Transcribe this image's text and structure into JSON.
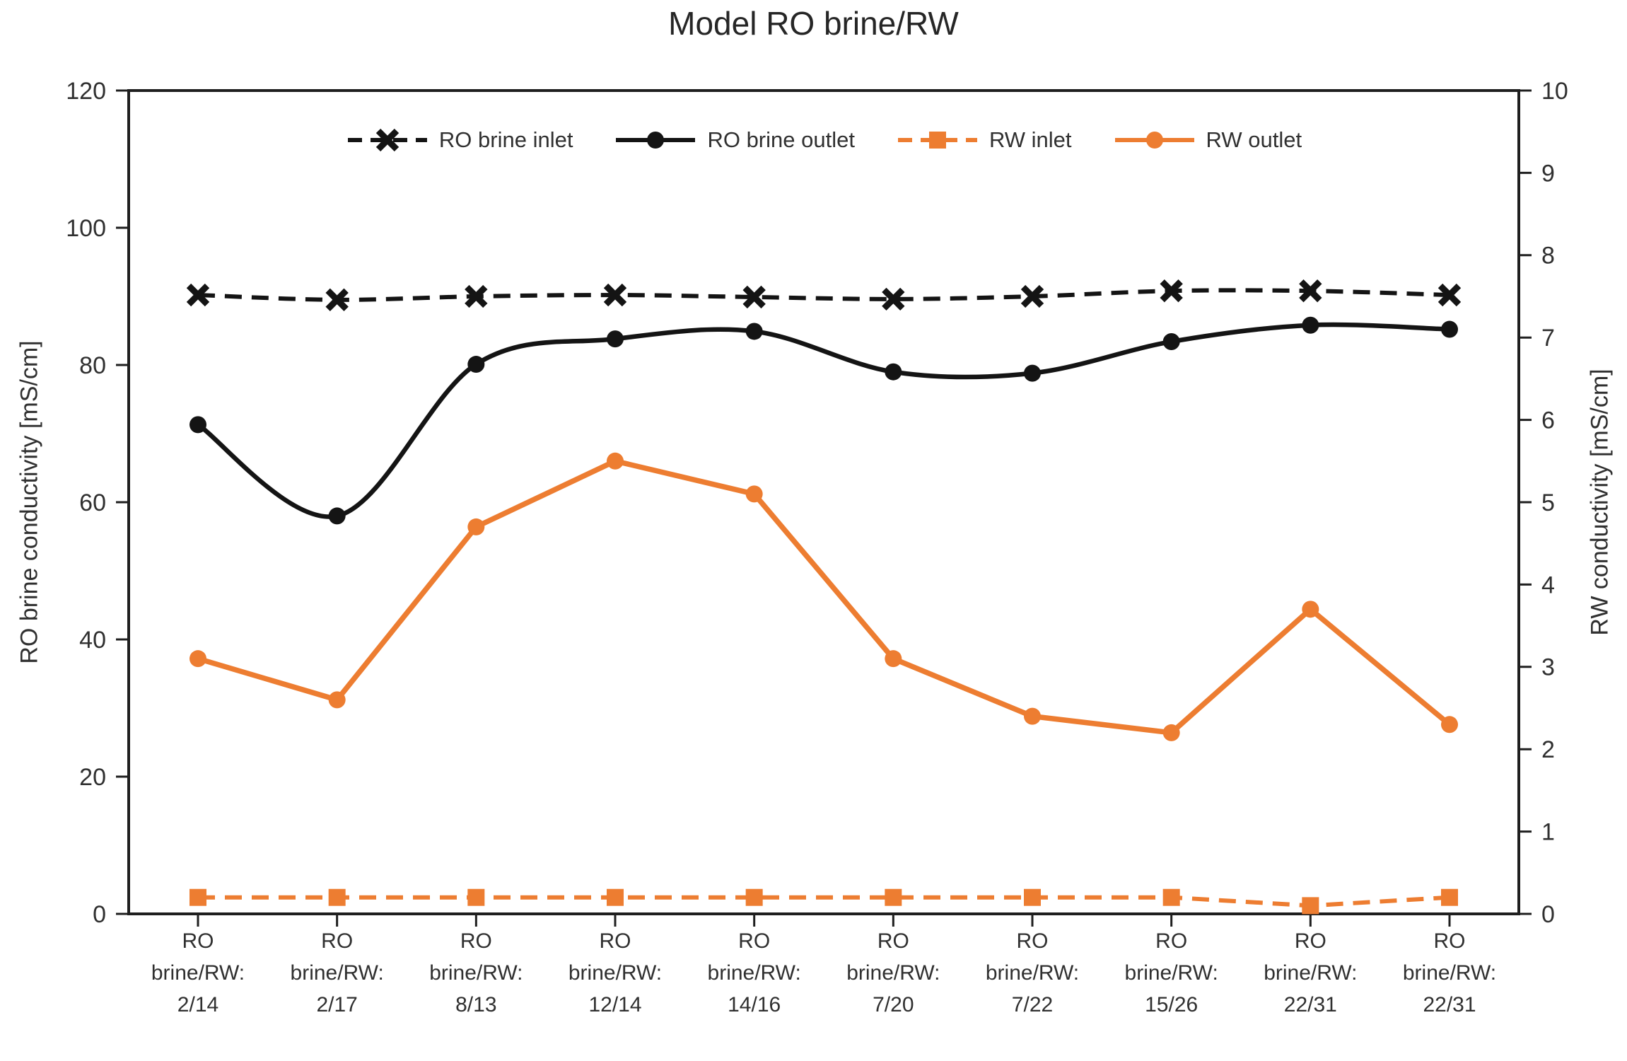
{
  "title": "Model RO brine/RW",
  "left_axis": {
    "label": "RO brine conductivity [mS/cm]",
    "ticks": [
      0,
      20,
      40,
      60,
      80,
      100,
      120
    ]
  },
  "right_axis": {
    "label": "RW conductivity [mS/cm]",
    "ticks": [
      0,
      1,
      2,
      3,
      4,
      5,
      6,
      7,
      8,
      9,
      10
    ]
  },
  "colors": {
    "black": "#141414",
    "orange": "#ED7D31",
    "axis": "#1f1f1f",
    "text": "#303030"
  },
  "chart_data": {
    "type": "line",
    "title": "Model RO brine/RW",
    "xlabel": "",
    "ylabel_left": "RO brine conductivity [mS/cm]",
    "ylabel_right": "RW conductivity [mS/cm]",
    "ylim_left": [
      0,
      120
    ],
    "ylim_right": [
      0,
      10
    ],
    "grid": false,
    "legend_position": "top-inside",
    "categories": [
      "RO brine/RW: 2/14",
      "RO brine/RW: 2/17",
      "RO brine/RW: 8/13",
      "RO brine/RW: 12/14",
      "RO brine/RW: 14/16",
      "RO brine/RW: 7/20",
      "RO brine/RW: 7/22",
      "RO brine/RW: 15/26",
      "RO brine/RW: 22/31",
      "RO brine/RW: 22/31"
    ],
    "category_label_lines": [
      [
        "RO",
        "brine/RW:",
        "2/14"
      ],
      [
        "RO",
        "brine/RW:",
        "2/17"
      ],
      [
        "RO",
        "brine/RW:",
        "8/13"
      ],
      [
        "RO",
        "brine/RW:",
        "12/14"
      ],
      [
        "RO",
        "brine/RW:",
        "14/16"
      ],
      [
        "RO",
        "brine/RW:",
        "7/20"
      ],
      [
        "RO",
        "brine/RW:",
        "7/22"
      ],
      [
        "RO",
        "brine/RW:",
        "15/26"
      ],
      [
        "RO",
        "brine/RW:",
        "22/31"
      ],
      [
        "RO",
        "brine/RW:",
        "22/31"
      ]
    ],
    "series": [
      {
        "name": "RO brine inlet",
        "axis": "left",
        "color": "#141414",
        "line": "dashed",
        "marker": "x",
        "smooth": true,
        "values": [
          90.2,
          89.5,
          90.0,
          90.2,
          89.9,
          89.6,
          90.0,
          90.8,
          90.8,
          90.2
        ]
      },
      {
        "name": "RO brine outlet",
        "axis": "left",
        "color": "#141414",
        "line": "solid",
        "marker": "circle",
        "smooth": true,
        "values": [
          71.3,
          58.0,
          80.1,
          83.8,
          84.9,
          79.0,
          78.8,
          83.4,
          85.8,
          85.2
        ]
      },
      {
        "name": "RW inlet",
        "axis": "right",
        "color": "#ED7D31",
        "line": "dashed",
        "marker": "square",
        "smooth": false,
        "values": [
          0.2,
          0.2,
          0.2,
          0.2,
          0.2,
          0.2,
          0.2,
          0.2,
          0.1,
          0.2
        ]
      },
      {
        "name": "RW outlet",
        "axis": "right",
        "color": "#ED7D31",
        "line": "solid",
        "marker": "circle",
        "smooth": false,
        "values": [
          3.1,
          2.6,
          4.7,
          5.5,
          5.1,
          3.1,
          2.4,
          2.2,
          3.7,
          2.3
        ]
      }
    ]
  }
}
